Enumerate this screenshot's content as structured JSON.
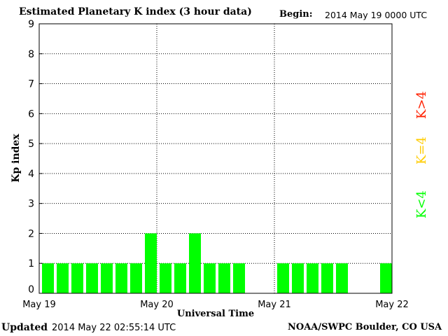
{
  "header": {
    "title": "Estimated Planetary K index (3 hour data)",
    "begin_label": "Begin:",
    "begin_value": "2014 May 19 0000 UTC"
  },
  "footer": {
    "updated_label": "Updated",
    "updated_value": "2014 May 22 02:55:14 UTC",
    "credit": "NOAA/SWPC Boulder, CO USA"
  },
  "legend": {
    "high": "K>4",
    "equal": "K=4",
    "low": "K<4"
  },
  "colors": {
    "low": "#00ff00",
    "equal": "#ffcc00",
    "high": "#ff2000",
    "grid": "#000000",
    "background": "#ffffff"
  },
  "chart_data": {
    "type": "bar",
    "title": "Estimated Planetary K index (3 hour data)",
    "xlabel": "Universal Time",
    "ylabel": "Kp index",
    "ylim": [
      0,
      9
    ],
    "yticks": [
      0,
      1,
      2,
      3,
      4,
      5,
      6,
      7,
      8,
      9
    ],
    "xticks": [
      "May 19",
      "May 20",
      "May 21",
      "May 22"
    ],
    "grid": "dotted vertical at day boundaries, dotted horizontal at each integer",
    "x_unit": "3-hour interval starting 2014 May 19 0000 UTC",
    "series": [
      {
        "values": [
          1,
          1,
          1,
          1,
          1,
          1,
          1,
          2,
          1,
          1,
          2,
          1,
          1,
          1,
          null,
          null,
          1,
          1,
          1,
          1,
          1,
          null,
          null,
          1
        ]
      }
    ]
  }
}
